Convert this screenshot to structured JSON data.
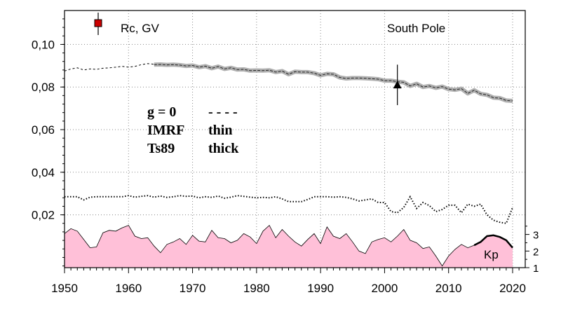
{
  "chart_data": {
    "type": "line",
    "title": "South Pole",
    "legend_marker_label": "Rc, GV",
    "kp_label": "Kp",
    "x_ticks": [
      "1950",
      "1960",
      "1970",
      "1980",
      "1990",
      "2000",
      "2010",
      "2020"
    ],
    "y_ticks": [
      "0,02",
      "0,04",
      "0,06",
      "0,08",
      "0,10"
    ],
    "right_ticks": [
      "1",
      "2",
      "3"
    ],
    "xlim": [
      1950,
      2021
    ],
    "ylim": [
      -0.004,
      0.117
    ],
    "kp_range": [
      1,
      3.8
    ],
    "grid": true,
    "legend_table": [
      [
        "g  = 0",
        "- - - -"
      ],
      [
        "IMRF",
        "thin"
      ],
      [
        "Ts89",
        "thick"
      ]
    ],
    "colors": {
      "kp_fill": "#ffc0d8",
      "marker_square": "#cc0000",
      "thick_band": "#b0b0b0"
    },
    "series": [
      {
        "style": "dashed",
        "x": [
          1950,
          1951,
          1952,
          1953,
          1954,
          1955,
          1956,
          1957,
          1958,
          1959,
          1960,
          1961,
          1962,
          1963,
          1964
        ],
        "y": [
          0.0875,
          0.0885,
          0.089,
          0.088,
          0.0885,
          0.0883,
          0.0888,
          0.089,
          0.0893,
          0.0897,
          0.0893,
          0.0897,
          0.0905,
          0.091,
          0.0907
        ]
      },
      {
        "style": "thick",
        "x": [
          1964,
          1965,
          1966,
          1967,
          1968,
          1969,
          1970,
          1971,
          1972,
          1973,
          1974,
          1975,
          1976,
          1977,
          1978,
          1979,
          1980,
          1981,
          1982,
          1983,
          1984,
          1985,
          1986,
          1987,
          1988,
          1989,
          1990,
          1991,
          1992,
          1993,
          1994,
          1995,
          1996,
          1997,
          1998,
          1999,
          2000,
          2001,
          2002,
          2003,
          2004,
          2005,
          2006,
          2007,
          2008,
          2009,
          2010,
          2011,
          2012,
          2013,
          2014,
          2015,
          2016,
          2017,
          2018,
          2019,
          2020
        ],
        "y": [
          0.0905,
          0.0906,
          0.0904,
          0.0905,
          0.0903,
          0.0899,
          0.0901,
          0.0893,
          0.0898,
          0.0888,
          0.0896,
          0.0885,
          0.089,
          0.0882,
          0.0883,
          0.0877,
          0.0878,
          0.0877,
          0.0879,
          0.087,
          0.0875,
          0.086,
          0.0872,
          0.087,
          0.087,
          0.0865,
          0.0855,
          0.0862,
          0.086,
          0.0845,
          0.084,
          0.0842,
          0.0842,
          0.0841,
          0.0839,
          0.0837,
          0.083,
          0.083,
          0.0825,
          0.0822,
          0.0805,
          0.0815,
          0.08,
          0.0805,
          0.0796,
          0.0802,
          0.079,
          0.0787,
          0.0792,
          0.077,
          0.0785,
          0.0768,
          0.0763,
          0.075,
          0.0748,
          0.0737,
          0.0735
        ]
      },
      {
        "style": "dotted",
        "x": [
          1950,
          1951,
          1952,
          1953,
          1954,
          1955,
          1956,
          1957,
          1958,
          1959,
          1960,
          1961,
          1962,
          1963,
          1964,
          1965,
          1966,
          1967,
          1968,
          1969,
          1970,
          1971,
          1972,
          1973,
          1974,
          1975,
          1976,
          1977,
          1978,
          1979,
          1980,
          1981,
          1982,
          1983,
          1984,
          1985,
          1986,
          1987,
          1988,
          1989,
          1990,
          1991,
          1992,
          1993,
          1994,
          1995,
          1996,
          1997,
          1998,
          1999,
          2000,
          2001,
          2002,
          2003,
          2004,
          2005,
          2006,
          2007,
          2008,
          2009,
          2010,
          2011,
          2012,
          2013,
          2014,
          2015,
          2016,
          2017,
          2018,
          2019,
          2020
        ],
        "y": [
          0.0285,
          0.0285,
          0.0285,
          0.027,
          0.0283,
          0.0285,
          0.0285,
          0.0285,
          0.0285,
          0.0285,
          0.029,
          0.0283,
          0.0287,
          0.029,
          0.0283,
          0.0288,
          0.0282,
          0.0285,
          0.029,
          0.0287,
          0.0288,
          0.028,
          0.0285,
          0.0282,
          0.0288,
          0.0278,
          0.0283,
          0.029,
          0.0287,
          0.0283,
          0.028,
          0.0282,
          0.028,
          0.0285,
          0.0275,
          0.0262,
          0.0262,
          0.0262,
          0.0272,
          0.0285,
          0.0285,
          0.0285,
          0.0283,
          0.0285,
          0.0282,
          0.0275,
          0.0265,
          0.027,
          0.0275,
          0.0258,
          0.0258,
          0.0215,
          0.021,
          0.0235,
          0.0285,
          0.023,
          0.0258,
          0.0243,
          0.0215,
          0.0225,
          0.0245,
          0.0245,
          0.021,
          0.025,
          0.024,
          0.025,
          0.02,
          0.0175,
          0.0165,
          0.016,
          0.0235
        ]
      }
    ],
    "kp": {
      "x": [
        1950,
        1951,
        1952,
        1953,
        1954,
        1955,
        1956,
        1957,
        1958,
        1959,
        1960,
        1961,
        1962,
        1963,
        1964,
        1965,
        1966,
        1967,
        1968,
        1969,
        1970,
        1971,
        1972,
        1973,
        1974,
        1975,
        1976,
        1977,
        1978,
        1979,
        1980,
        1981,
        1982,
        1983,
        1984,
        1985,
        1986,
        1987,
        1988,
        1989,
        1990,
        1991,
        1992,
        1993,
        1994,
        1995,
        1996,
        1997,
        1998,
        1999,
        2000,
        2001,
        2002,
        2003,
        2004,
        2005,
        2006,
        2007,
        2008,
        2009,
        2010,
        2011,
        2012,
        2013,
        2014,
        2015,
        2016,
        2017,
        2018,
        2019,
        2020
      ],
      "y": [
        3.05,
        3.35,
        3.2,
        2.7,
        2.2,
        2.25,
        3.1,
        3.25,
        3.2,
        3.4,
        3.55,
        2.9,
        2.75,
        2.8,
        2.3,
        1.9,
        2.4,
        2.55,
        2.75,
        2.4,
        2.95,
        2.6,
        2.55,
        3.25,
        2.8,
        2.75,
        2.5,
        2.65,
        3.05,
        2.85,
        2.45,
        3.2,
        3.55,
        2.8,
        3.3,
        2.9,
        2.55,
        2.3,
        2.7,
        3.05,
        2.45,
        3.45,
        2.9,
        2.75,
        3.05,
        2.55,
        2.0,
        1.85,
        2.55,
        2.7,
        2.8,
        2.55,
        2.9,
        3.3,
        2.65,
        2.5,
        2.15,
        2.25,
        1.7,
        1.1,
        1.7,
        2.1,
        2.4,
        2.2,
        2.35,
        2.55,
        2.9,
        2.95,
        2.85,
        2.65,
        2.2
      ]
    },
    "kp_thick_range": [
      2014,
      2020
    ],
    "marker_point": {
      "x": 2002,
      "y": 0.081,
      "err": 0.0095
    }
  }
}
